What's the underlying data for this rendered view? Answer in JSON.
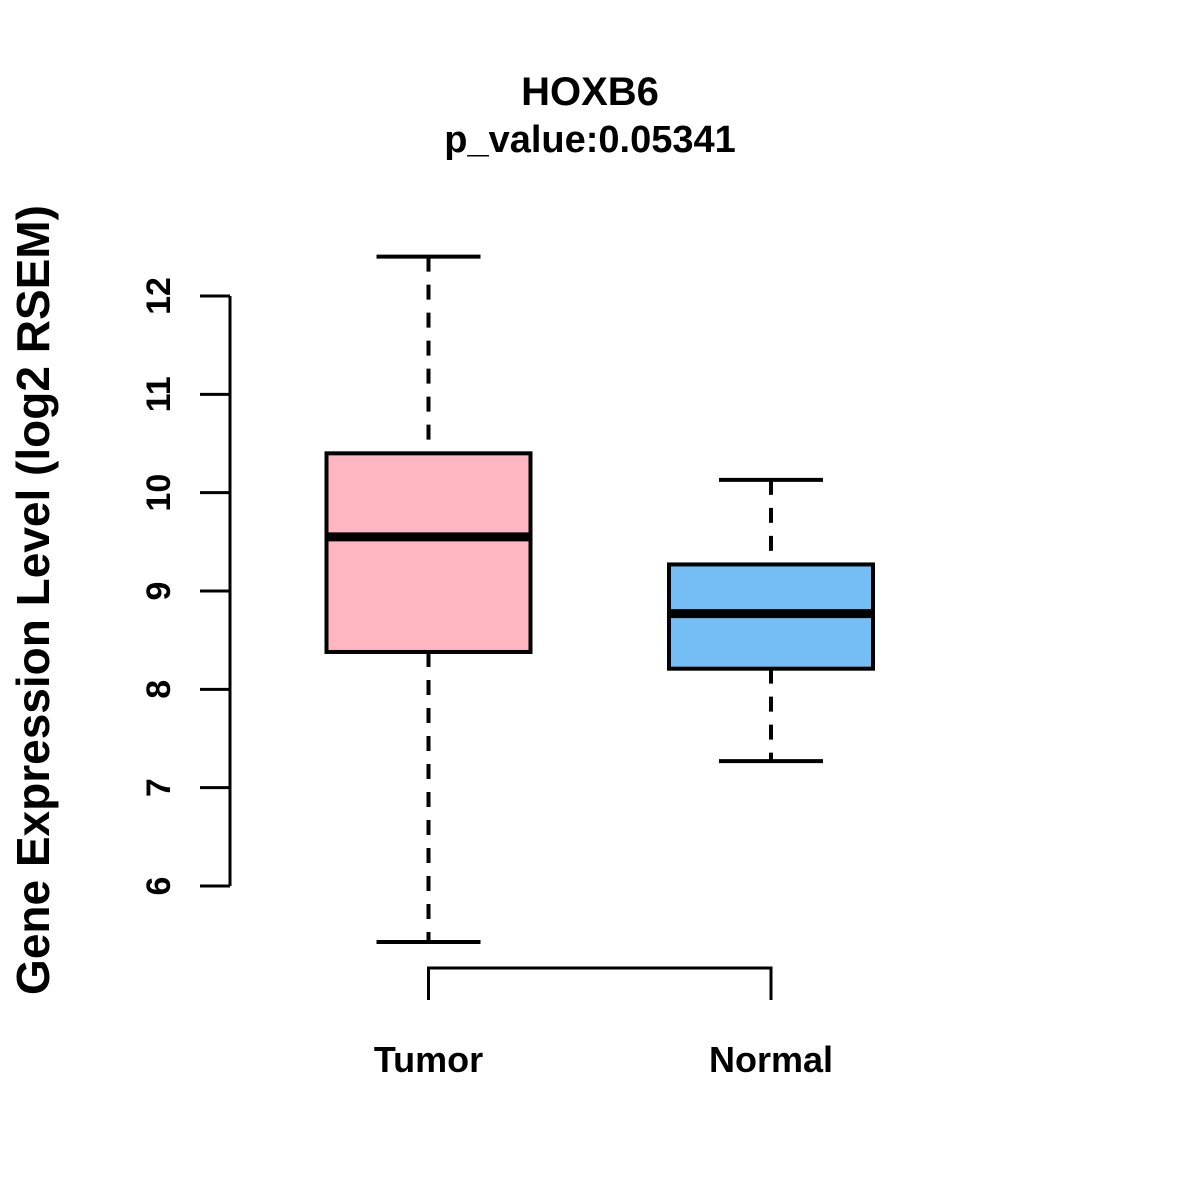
{
  "chart_data": {
    "type": "boxplot",
    "title": "HOXB6",
    "subtitle": "p_value:0.05341",
    "ylabel": "Gene Expression Level (log2 RSEM)",
    "xlabel": "",
    "categories": [
      "Tumor",
      "Normal"
    ],
    "yticks": [
      6,
      7,
      8,
      9,
      10,
      11,
      12
    ],
    "ylim": [
      5.4,
      12.45
    ],
    "grid": false,
    "legend": "none",
    "series": [
      {
        "name": "Tumor",
        "box_fill": "#FFB6C1",
        "whisker_low": 5.43,
        "q1": 8.38,
        "median": 9.55,
        "q3": 10.4,
        "whisker_high": 12.4
      },
      {
        "name": "Normal",
        "box_fill": "#74BEF5",
        "whisker_low": 7.27,
        "q1": 8.21,
        "median": 8.77,
        "q3": 9.27,
        "whisker_high": 10.13
      }
    ],
    "comparison_bracket": {
      "from": "Tumor",
      "to": "Normal"
    },
    "colors": {
      "box_border": "#000000",
      "median_line": "#000000",
      "whisker": "#000000",
      "axis": "#000000",
      "text": "#000000",
      "background": "#FFFFFF"
    }
  }
}
